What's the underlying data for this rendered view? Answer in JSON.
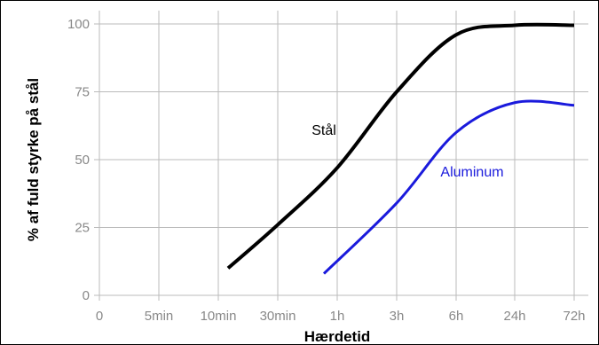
{
  "chart_data": {
    "type": "line",
    "xlabel": "Hærdetid",
    "ylabel": "% af fuld styrke på stål",
    "x_ticks": [
      "0",
      "5min",
      "10min",
      "30min",
      "1h",
      "3h",
      "6h",
      "24h",
      "72h"
    ],
    "y_ticks": [
      "0",
      "25",
      "50",
      "75",
      "100"
    ],
    "ylim": [
      0,
      100
    ],
    "grid": true,
    "colors": {
      "Stål": "#000000",
      "Aluminum": "#1a1adc",
      "grid": "#bbbbbb",
      "frame": "#000000"
    },
    "series": [
      {
        "name": "Stål",
        "label_position": "mid",
        "x": [
          "10min",
          "30min",
          "1h",
          "3h",
          "6h",
          "24h",
          "72h"
        ],
        "points": [
          [
            "10min",
            10
          ],
          [
            "30min",
            26
          ],
          [
            "1h",
            47
          ],
          [
            "3h",
            75
          ],
          [
            "6h",
            96
          ],
          [
            "24h",
            99.5
          ],
          [
            "72h",
            99.5
          ]
        ]
      },
      {
        "name": "Aluminum",
        "label_position": "mid",
        "points": [
          [
            "1h",
            8
          ],
          [
            "3h",
            34
          ],
          [
            "6h",
            60
          ],
          [
            "24h",
            71
          ],
          [
            "72h",
            70
          ]
        ]
      }
    ]
  }
}
